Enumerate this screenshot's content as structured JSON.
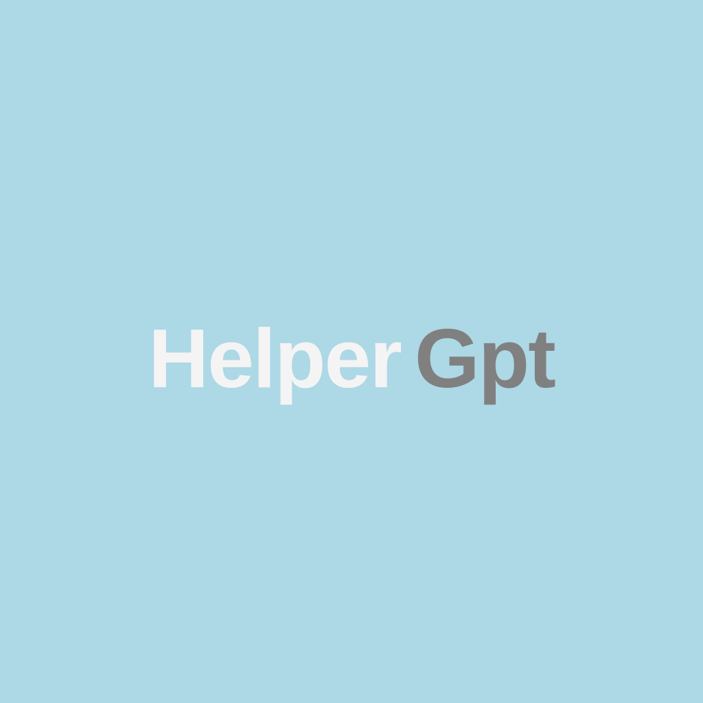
{
  "logo": {
    "part1": "Helper",
    "part2": "Gpt"
  },
  "colors": {
    "background": "#add8e6",
    "logo_light": "#f4f4f4",
    "logo_dark": "#808080"
  }
}
